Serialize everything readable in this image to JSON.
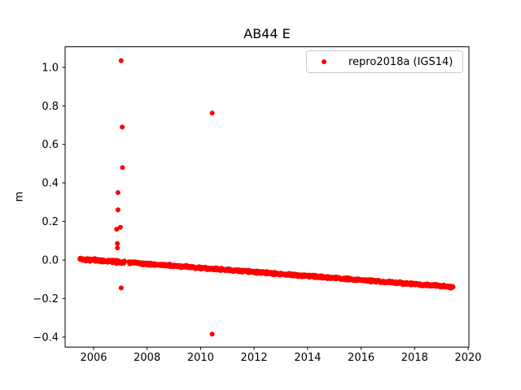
{
  "chart_data": {
    "type": "scatter",
    "title": "AB44 E",
    "xlabel": "",
    "ylabel": "m",
    "grid": false,
    "legend_position": "upper right",
    "xlim": [
      2004.935,
      2020.03
    ],
    "ylim": [
      -0.452,
      1.1065
    ],
    "x_ticks": [
      2006,
      2008,
      2010,
      2012,
      2014,
      2016,
      2018,
      2020
    ],
    "y_ticks": [
      -0.4,
      -0.2,
      0.0,
      0.2,
      0.4,
      0.6,
      0.8,
      1.0
    ],
    "axis_color": "#000000",
    "series": [
      {
        "name": "repro2018a (IGS14)",
        "color": "#ff0000",
        "marker": "dot",
        "marker_radius_px": 3,
        "trend_segments": [
          {
            "x_start": 2005.49,
            "x_end": 2007.15,
            "y_start": 0.005,
            "y_end": -0.012,
            "noise": 0.009
          },
          {
            "x_start": 2007.32,
            "x_end": 2019.44,
            "y_start": -0.013,
            "y_end": -0.14,
            "noise": 0.0075
          }
        ],
        "sample_step_years": 0.0125,
        "outliers": [
          [
            2006.86,
            0.16
          ],
          [
            2006.89,
            0.085
          ],
          [
            2006.89,
            0.063
          ],
          [
            2006.91,
            0.35
          ],
          [
            2006.91,
            0.26
          ],
          [
            2007.0,
            0.17
          ],
          [
            2007.03,
            1.035
          ],
          [
            2007.03,
            -0.145
          ],
          [
            2007.07,
            0.69
          ],
          [
            2007.08,
            0.48
          ],
          [
            2010.43,
            0.763
          ],
          [
            2010.43,
            -0.385
          ]
        ]
      }
    ]
  }
}
